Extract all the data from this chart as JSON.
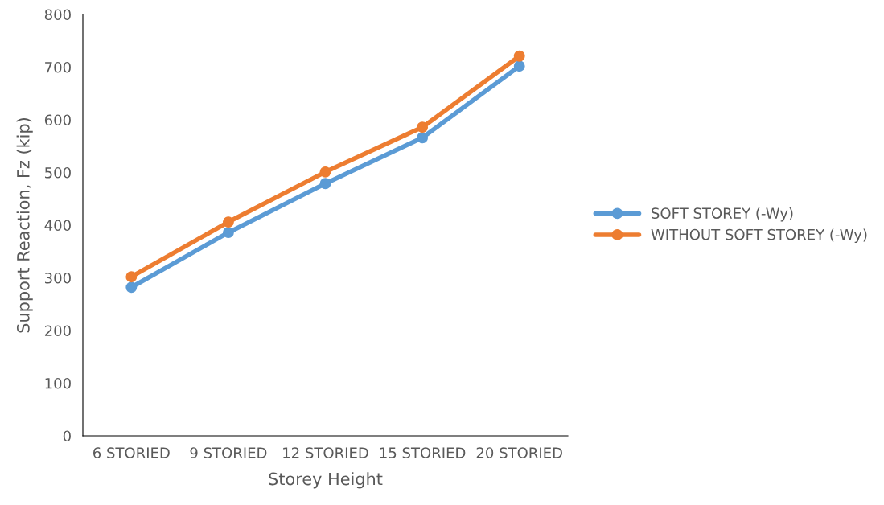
{
  "chart_data": {
    "type": "line",
    "xlabel": "Storey Height",
    "ylabel": "Support Reaction, Fz (kip)",
    "categories": [
      "6 STORIED",
      "9 STORIED",
      "12 STORIED",
      "15 STORIED",
      "20 STORIED"
    ],
    "series": [
      {
        "name": "SOFT STOREY (-Wy)",
        "color": "#5b9bd5",
        "values": [
          282,
          386,
          479,
          566,
          702
        ]
      },
      {
        "name": "WITHOUT SOFT STOREY (-Wy)",
        "color": "#ed7d31",
        "values": [
          302,
          406,
          501,
          586,
          721
        ]
      }
    ],
    "ylim": [
      0,
      800
    ],
    "yticks": [
      0,
      100,
      200,
      300,
      400,
      500,
      600,
      700,
      800
    ],
    "grid": false,
    "legend": "right",
    "marker": "circle",
    "line_style": "solid"
  }
}
